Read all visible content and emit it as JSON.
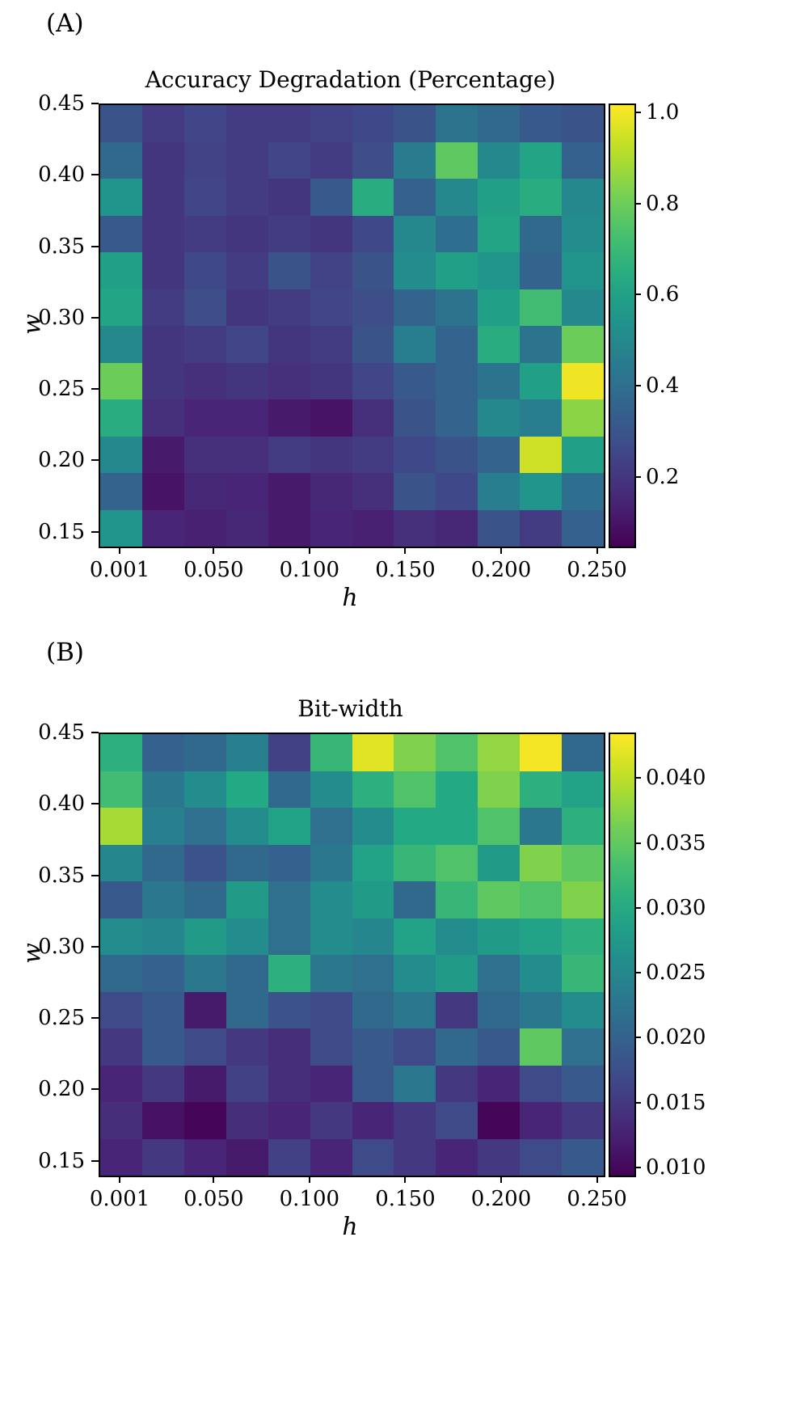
{
  "style": {
    "background": "#ffffff",
    "text_color": "#000000",
    "spine_color": "#000000",
    "colormap": "viridis"
  },
  "chart_data": [
    {
      "type": "heatmap",
      "panel_label": "(A)",
      "title": "Accuracy Degradation (Percentage)",
      "xlabel": "h",
      "ylabel": "w",
      "colormap": "viridis",
      "x_tick_values": [
        0.001,
        0.05,
        0.1,
        0.15,
        0.2,
        0.25
      ],
      "x_tick_labels": [
        "0.001",
        "0.050",
        "0.100",
        "0.150",
        "0.200",
        "0.250"
      ],
      "y_tick_values": [
        0.45,
        0.4,
        0.35,
        0.3,
        0.25,
        0.2,
        0.15
      ],
      "y_tick_labels": [
        "0.45",
        "0.40",
        "0.35",
        "0.30",
        "0.25",
        "0.20",
        "0.15"
      ],
      "x_range": [
        -0.01,
        0.2527
      ],
      "y_range": [
        0.1407,
        0.45
      ],
      "x_centers": [
        0.001,
        0.0236,
        0.0463,
        0.0689,
        0.0915,
        0.1142,
        0.1368,
        0.1595,
        0.1821,
        0.2047,
        0.2274,
        0.25
      ],
      "y_centers": [
        0.437,
        0.411,
        0.386,
        0.36,
        0.334,
        0.308,
        0.282,
        0.257,
        0.231,
        0.205,
        0.179,
        0.154
      ],
      "vmin": 0.05,
      "vmax": 1.02,
      "colorbar_tick_values": [
        1.0,
        0.8,
        0.6,
        0.4,
        0.2
      ],
      "colorbar_tick_labels": [
        "1.0",
        "0.8",
        "0.6",
        "0.4",
        "0.2"
      ],
      "values": [
        [
          0.3,
          0.22,
          0.25,
          0.22,
          0.22,
          0.24,
          0.26,
          0.3,
          0.42,
          0.38,
          0.32,
          0.3
        ],
        [
          0.38,
          0.2,
          0.24,
          0.22,
          0.25,
          0.22,
          0.28,
          0.45,
          0.78,
          0.5,
          0.62,
          0.35
        ],
        [
          0.55,
          0.2,
          0.25,
          0.22,
          0.2,
          0.32,
          0.65,
          0.35,
          0.5,
          0.6,
          0.65,
          0.5
        ],
        [
          0.32,
          0.2,
          0.22,
          0.2,
          0.22,
          0.2,
          0.26,
          0.5,
          0.4,
          0.62,
          0.38,
          0.52
        ],
        [
          0.6,
          0.2,
          0.26,
          0.22,
          0.3,
          0.24,
          0.3,
          0.52,
          0.6,
          0.55,
          0.36,
          0.55
        ],
        [
          0.62,
          0.22,
          0.28,
          0.2,
          0.22,
          0.25,
          0.28,
          0.36,
          0.42,
          0.6,
          0.72,
          0.5
        ],
        [
          0.5,
          0.2,
          0.22,
          0.25,
          0.2,
          0.22,
          0.3,
          0.46,
          0.36,
          0.65,
          0.42,
          0.8
        ],
        [
          0.8,
          0.2,
          0.18,
          0.2,
          0.18,
          0.2,
          0.25,
          0.32,
          0.36,
          0.42,
          0.6,
          1.0
        ],
        [
          0.65,
          0.18,
          0.15,
          0.15,
          0.12,
          0.1,
          0.18,
          0.3,
          0.36,
          0.5,
          0.46,
          0.85
        ],
        [
          0.5,
          0.12,
          0.18,
          0.18,
          0.22,
          0.2,
          0.22,
          0.26,
          0.3,
          0.36,
          0.95,
          0.6
        ],
        [
          0.36,
          0.1,
          0.16,
          0.15,
          0.12,
          0.16,
          0.18,
          0.3,
          0.26,
          0.46,
          0.55,
          0.4
        ],
        [
          0.55,
          0.15,
          0.14,
          0.16,
          0.12,
          0.15,
          0.14,
          0.18,
          0.16,
          0.3,
          0.22,
          0.35
        ]
      ]
    },
    {
      "type": "heatmap",
      "panel_label": "(B)",
      "title": "Bit-width",
      "xlabel": "h",
      "ylabel": "w",
      "colormap": "viridis",
      "x_tick_values": [
        0.001,
        0.05,
        0.1,
        0.15,
        0.2,
        0.25
      ],
      "x_tick_labels": [
        "0.001",
        "0.050",
        "0.100",
        "0.150",
        "0.200",
        "0.250"
      ],
      "y_tick_values": [
        0.45,
        0.4,
        0.35,
        0.3,
        0.25,
        0.2,
        0.15
      ],
      "y_tick_labels": [
        "0.45",
        "0.40",
        "0.35",
        "0.30",
        "0.25",
        "0.20",
        "0.15"
      ],
      "x_range": [
        -0.01,
        0.2527
      ],
      "y_range": [
        0.1407,
        0.45
      ],
      "x_centers": [
        0.001,
        0.0236,
        0.0463,
        0.0689,
        0.0915,
        0.1142,
        0.1368,
        0.1595,
        0.1821,
        0.2047,
        0.2274,
        0.25
      ],
      "y_centers": [
        0.437,
        0.411,
        0.386,
        0.36,
        0.334,
        0.308,
        0.282,
        0.257,
        0.231,
        0.205,
        0.179,
        0.154
      ],
      "vmin": 0.0095,
      "vmax": 0.0435,
      "colorbar_tick_values": [
        0.04,
        0.035,
        0.03,
        0.025,
        0.02,
        0.015,
        0.01
      ],
      "colorbar_tick_labels": [
        "0.040",
        "0.035",
        "0.030",
        "0.025",
        "0.020",
        "0.015",
        "0.010"
      ],
      "values": [
        [
          0.031,
          0.02,
          0.021,
          0.024,
          0.016,
          0.032,
          0.042,
          0.037,
          0.034,
          0.038,
          0.043,
          0.021
        ],
        [
          0.033,
          0.023,
          0.026,
          0.03,
          0.021,
          0.026,
          0.031,
          0.034,
          0.03,
          0.037,
          0.031,
          0.029
        ],
        [
          0.039,
          0.024,
          0.022,
          0.026,
          0.029,
          0.022,
          0.026,
          0.03,
          0.03,
          0.034,
          0.023,
          0.031
        ],
        [
          0.025,
          0.021,
          0.018,
          0.021,
          0.02,
          0.023,
          0.029,
          0.032,
          0.034,
          0.028,
          0.037,
          0.035
        ],
        [
          0.019,
          0.023,
          0.021,
          0.028,
          0.022,
          0.026,
          0.028,
          0.021,
          0.032,
          0.035,
          0.034,
          0.037
        ],
        [
          0.026,
          0.025,
          0.028,
          0.026,
          0.022,
          0.026,
          0.025,
          0.029,
          0.026,
          0.028,
          0.029,
          0.031
        ],
        [
          0.021,
          0.02,
          0.023,
          0.021,
          0.031,
          0.023,
          0.022,
          0.026,
          0.028,
          0.022,
          0.026,
          0.032
        ],
        [
          0.017,
          0.019,
          0.012,
          0.021,
          0.018,
          0.017,
          0.021,
          0.023,
          0.015,
          0.021,
          0.023,
          0.026
        ],
        [
          0.015,
          0.019,
          0.017,
          0.015,
          0.014,
          0.017,
          0.019,
          0.017,
          0.021,
          0.019,
          0.035,
          0.022
        ],
        [
          0.013,
          0.015,
          0.012,
          0.016,
          0.014,
          0.013,
          0.019,
          0.023,
          0.015,
          0.013,
          0.017,
          0.019
        ],
        [
          0.014,
          0.011,
          0.01,
          0.014,
          0.013,
          0.015,
          0.013,
          0.015,
          0.017,
          0.01,
          0.013,
          0.015
        ],
        [
          0.013,
          0.015,
          0.013,
          0.012,
          0.016,
          0.013,
          0.017,
          0.015,
          0.013,
          0.015,
          0.017,
          0.019
        ]
      ]
    }
  ]
}
